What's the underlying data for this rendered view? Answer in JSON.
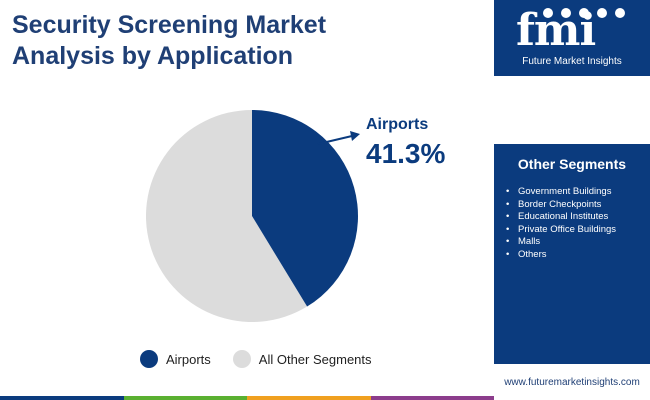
{
  "title_line1": "Security Screening Market",
  "title_line2": "Analysis by Application",
  "logo": {
    "letters": "fmi",
    "caption": "Future Market Insights"
  },
  "segments_panel": {
    "title": "Other Segments",
    "items": [
      "Government Buildings",
      "Border Checkpoints",
      "Educational Institutes",
      "Private Office Buildings",
      "Malls",
      "Others"
    ]
  },
  "url": "www.futuremarketinsights.com",
  "callout": {
    "label": "Airports",
    "value": "41.3%"
  },
  "colors": {
    "primary": "#0b3b7e",
    "secondary": "#dcdcdc",
    "bar": [
      "#0b3b7e",
      "#5ab031",
      "#f0a020",
      "#8c3d8c"
    ]
  },
  "chart_data": {
    "type": "pie",
    "title": "Security Screening Market Analysis by Application",
    "categories": [
      "Airports",
      "All Other Segments"
    ],
    "values": [
      41.3,
      58.7
    ],
    "legend_position": "bottom"
  }
}
